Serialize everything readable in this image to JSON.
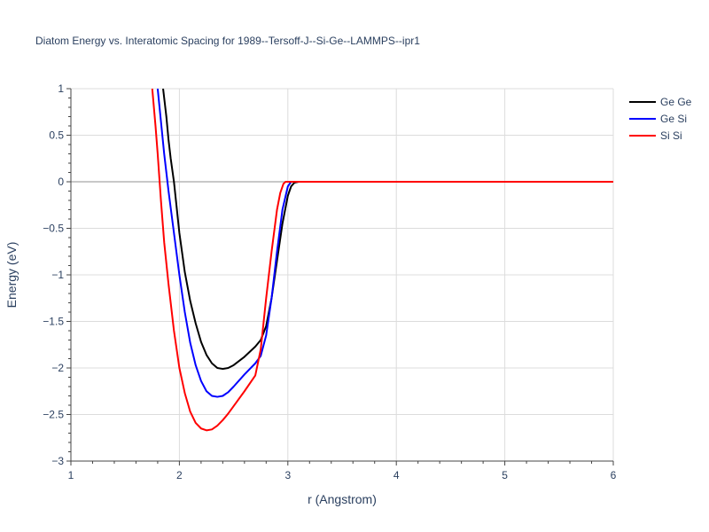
{
  "chart_data": {
    "type": "line",
    "title": "Diatom Energy vs. Interatomic Spacing for 1989--Tersoff-J--Si-Ge--LAMMPS--ipr1",
    "xlabel": "r (Angstrom)",
    "ylabel": "Energy (eV)",
    "xlim": [
      1,
      6
    ],
    "ylim": [
      -3,
      1
    ],
    "xticks": [
      1,
      2,
      3,
      4,
      5,
      6
    ],
    "yticks": [
      1,
      0.5,
      0,
      -0.5,
      -1,
      -1.5,
      -2,
      -2.5,
      -3
    ],
    "ytick_labels": [
      "1",
      "0.5",
      "0",
      "−0.5",
      "−1",
      "−1.5",
      "−2",
      "−2.5",
      "−3"
    ],
    "grid": true,
    "legend_position": "top-right",
    "series": [
      {
        "name": "Ge Ge",
        "color": "#000000",
        "x": [
          1.85,
          1.88,
          1.9,
          1.92,
          1.95,
          2.0,
          2.05,
          2.1,
          2.15,
          2.2,
          2.25,
          2.3,
          2.35,
          2.4,
          2.45,
          2.5,
          2.6,
          2.7,
          2.75,
          2.8,
          2.85,
          2.9,
          2.95,
          3.0,
          3.03,
          3.06,
          3.1,
          3.5,
          4.0,
          4.5,
          5.0,
          5.5,
          6.0
        ],
        "y": [
          1.0,
          0.7,
          0.45,
          0.25,
          0.0,
          -0.55,
          -0.97,
          -1.28,
          -1.52,
          -1.72,
          -1.86,
          -1.95,
          -2.0,
          -2.01,
          -2.0,
          -1.97,
          -1.88,
          -1.77,
          -1.7,
          -1.55,
          -1.25,
          -0.85,
          -0.45,
          -0.15,
          -0.05,
          -0.01,
          0.0,
          0.0,
          0.0,
          0.0,
          0.0,
          0.0,
          0.0
        ]
      },
      {
        "name": "Ge Si",
        "color": "#0000ff",
        "x": [
          1.8,
          1.83,
          1.86,
          1.9,
          1.95,
          2.0,
          2.05,
          2.1,
          2.15,
          2.2,
          2.25,
          2.3,
          2.35,
          2.4,
          2.45,
          2.5,
          2.6,
          2.7,
          2.75,
          2.8,
          2.85,
          2.9,
          2.95,
          3.0,
          3.03,
          3.06,
          3.5,
          4.0,
          4.5,
          5.0,
          5.5,
          6.0
        ],
        "y": [
          1.0,
          0.65,
          0.3,
          -0.1,
          -0.55,
          -1.0,
          -1.4,
          -1.73,
          -1.97,
          -2.14,
          -2.25,
          -2.3,
          -2.31,
          -2.3,
          -2.26,
          -2.2,
          -2.07,
          -1.95,
          -1.87,
          -1.65,
          -1.25,
          -0.75,
          -0.3,
          -0.05,
          0.0,
          0.0,
          0.0,
          0.0,
          0.0,
          0.0,
          0.0,
          0.0
        ]
      },
      {
        "name": "Si Si",
        "color": "#ff0000",
        "x": [
          1.75,
          1.78,
          1.8,
          1.83,
          1.86,
          1.9,
          1.95,
          2.0,
          2.05,
          2.1,
          2.15,
          2.2,
          2.25,
          2.3,
          2.35,
          2.4,
          2.45,
          2.5,
          2.6,
          2.7,
          2.75,
          2.8,
          2.85,
          2.9,
          2.93,
          2.96,
          2.98,
          3.0,
          3.5,
          4.0,
          4.5,
          5.0,
          5.5,
          6.0
        ],
        "y": [
          1.0,
          0.6,
          0.3,
          -0.2,
          -0.65,
          -1.1,
          -1.6,
          -2.0,
          -2.27,
          -2.47,
          -2.59,
          -2.65,
          -2.67,
          -2.66,
          -2.62,
          -2.56,
          -2.49,
          -2.41,
          -2.25,
          -2.08,
          -1.8,
          -1.25,
          -0.75,
          -0.3,
          -0.12,
          -0.02,
          0.0,
          0.0,
          0.0,
          0.0,
          0.0,
          0.0,
          0.0,
          0.0
        ]
      }
    ]
  }
}
